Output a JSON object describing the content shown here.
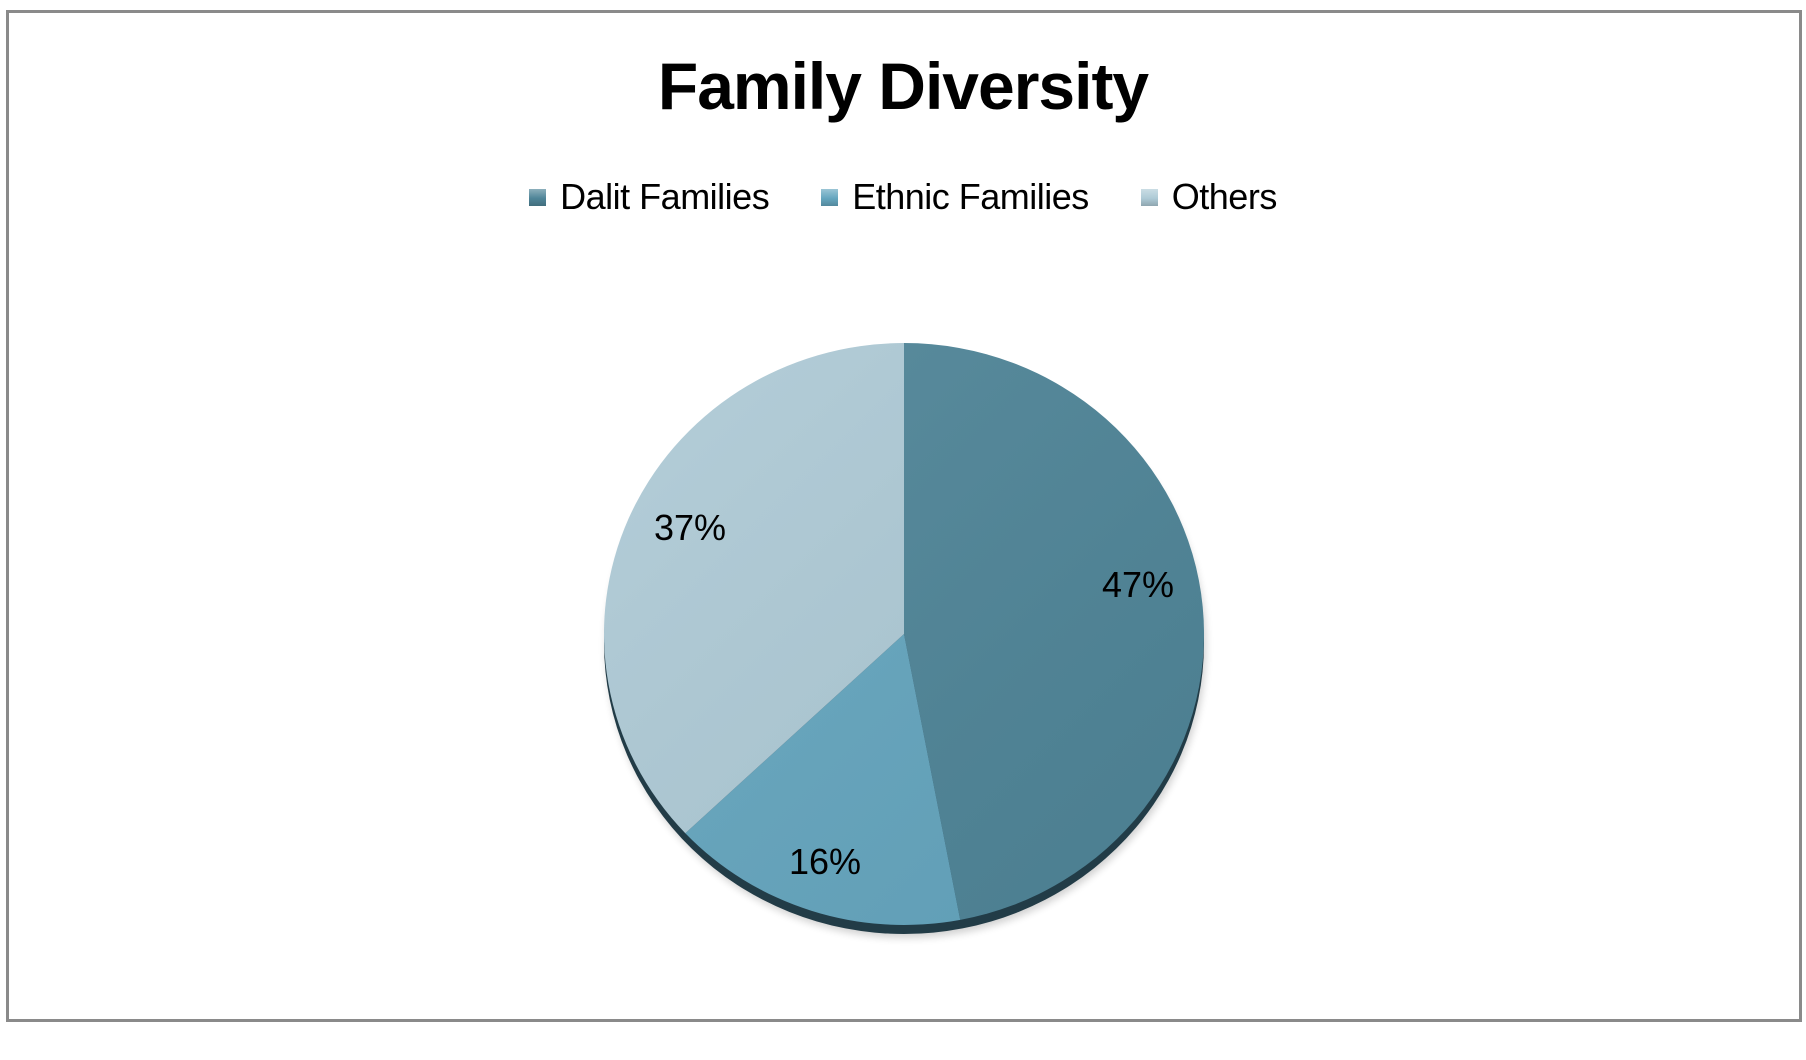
{
  "chart_data": {
    "type": "pie",
    "title": "Family Diversity",
    "categories": [
      "Dalit Families",
      "Ethnic Families",
      "Others"
    ],
    "values": [
      47,
      16,
      37
    ],
    "labels": [
      "47%",
      "16%",
      "37%"
    ],
    "colors": [
      "#4F8598",
      "#65A6BF",
      "#AECAD6"
    ],
    "legend_position": "top",
    "start_angle_deg": 0,
    "direction": "clockwise",
    "style": "3d-tilted"
  },
  "chart": {
    "title": "Family Diversity",
    "legend": [
      {
        "label": "Dalit Families",
        "color": "#4F8598"
      },
      {
        "label": "Ethnic Families",
        "color": "#65A6BF"
      },
      {
        "label": "Others",
        "color": "#AECAD6"
      }
    ],
    "slices": [
      {
        "name": "Dalit Families",
        "label": "47%"
      },
      {
        "name": "Ethnic Families",
        "label": "16%"
      },
      {
        "name": "Others",
        "label": "37%"
      }
    ],
    "rim_color": "#223C47",
    "border_color": "#8a8a8a"
  }
}
